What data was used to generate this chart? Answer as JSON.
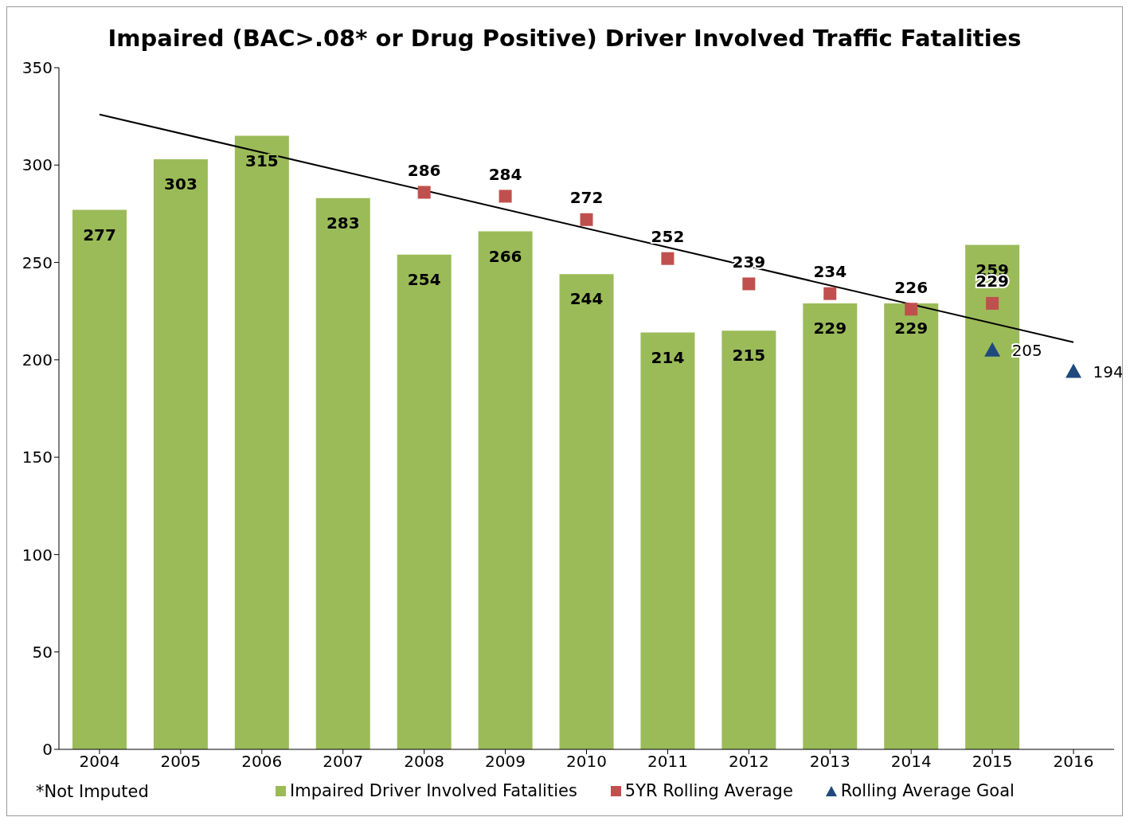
{
  "chart_data": {
    "type": "bar",
    "title": "Impaired (BAC>.08* or Drug Positive) Driver Involved Traffic Fatalities",
    "categories": [
      "2004",
      "2005",
      "2006",
      "2007",
      "2008",
      "2009",
      "2010",
      "2011",
      "2012",
      "2013",
      "2014",
      "2015",
      "2016"
    ],
    "series": [
      {
        "name": "Impaired Driver Involved Fatalities",
        "color": "#9bbb59",
        "values": [
          277,
          303,
          315,
          283,
          254,
          266,
          244,
          214,
          215,
          229,
          229,
          259,
          null
        ],
        "value_labels": [
          "277",
          "303",
          "315",
          "283",
          "254",
          "266",
          "244",
          "214",
          "215",
          "229",
          "229",
          "259",
          null
        ]
      },
      {
        "name": "5YR Rolling Average",
        "type": "scatter",
        "marker": "square",
        "color": "#c0504d",
        "values": [
          null,
          null,
          null,
          null,
          286,
          284,
          272,
          252,
          239,
          234,
          226,
          229,
          null
        ],
        "value_labels": [
          null,
          null,
          null,
          null,
          "286",
          "284",
          "272",
          "252",
          "239",
          "234",
          "226",
          "229",
          null
        ]
      },
      {
        "name": "Rolling Average Goal",
        "type": "scatter",
        "marker": "triangle",
        "color": "#1f497d",
        "values": [
          null,
          null,
          null,
          null,
          null,
          null,
          null,
          null,
          null,
          null,
          null,
          205,
          194
        ],
        "value_labels": [
          null,
          null,
          null,
          null,
          null,
          null,
          null,
          null,
          null,
          null,
          null,
          "205",
          "194"
        ]
      },
      {
        "type": "line",
        "marker": "none",
        "line_style": "solid",
        "color": "#000000",
        "values": [
          326,
          null,
          null,
          null,
          null,
          null,
          null,
          null,
          null,
          null,
          null,
          null,
          209
        ]
      }
    ],
    "ylim": [
      0,
      350
    ],
    "yticks": [
      0,
      50,
      100,
      150,
      200,
      250,
      300,
      350
    ],
    "grid": false,
    "legend": "bottom",
    "annotations": [
      "*Not Imputed"
    ]
  }
}
